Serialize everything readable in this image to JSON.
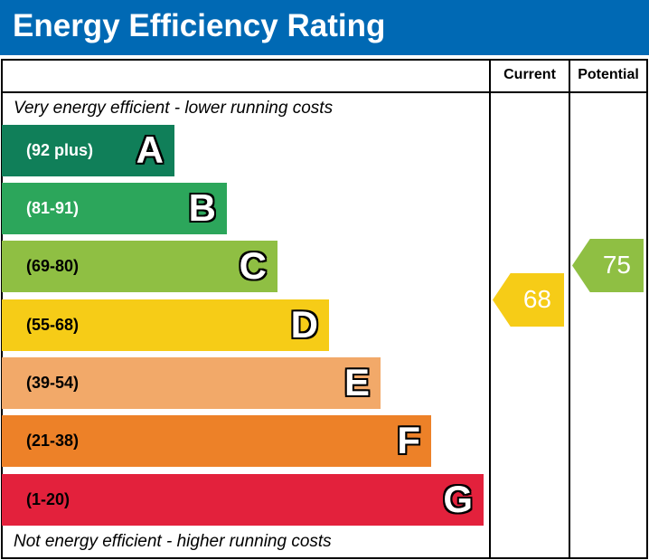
{
  "chart_data": {
    "type": "table",
    "title": "Energy Efficiency Rating",
    "columns": [
      "Current",
      "Potential"
    ],
    "top_note": "Very energy efficient - lower running costs",
    "bottom_note": "Not energy efficient - higher running costs",
    "bands": [
      {
        "letter": "A",
        "range": "(92 plus)",
        "color": "#107f59",
        "text_color": "#ffffff"
      },
      {
        "letter": "B",
        "range": "(81-91)",
        "color": "#2ca65b",
        "text_color": "#ffffff"
      },
      {
        "letter": "C",
        "range": "(69-80)",
        "color": "#8fbf43",
        "text_color": "#000000"
      },
      {
        "letter": "D",
        "range": "(55-68)",
        "color": "#f6cc17",
        "text_color": "#000000"
      },
      {
        "letter": "E",
        "range": "(39-54)",
        "color": "#f2a969",
        "text_color": "#000000"
      },
      {
        "letter": "F",
        "range": "(21-38)",
        "color": "#ed8128",
        "text_color": "#000000"
      },
      {
        "letter": "G",
        "range": "(1-20)",
        "color": "#e3213c",
        "text_color": "#000000"
      }
    ],
    "current": {
      "value": "68",
      "band": "D",
      "color": "#f6cc17"
    },
    "potential": {
      "value": "75",
      "band": "C",
      "color": "#8fbf43"
    }
  }
}
